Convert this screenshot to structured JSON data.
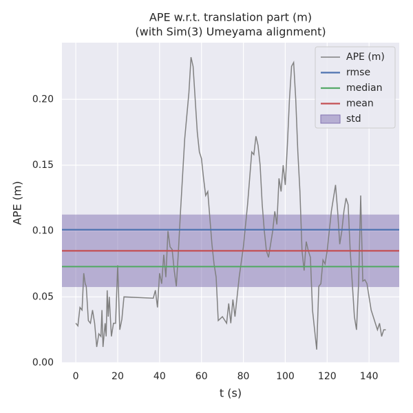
{
  "chart_data": {
    "type": "line",
    "title": [
      "APE w.r.t. translation part (m)",
      "(with Sim(3) Umeyama alignment)"
    ],
    "xlabel": "t (s)",
    "ylabel": "APE (m)",
    "xlim": [
      -6.6,
      154.4
    ],
    "ylim": [
      0,
      0.243
    ],
    "xticks": [
      0,
      20,
      40,
      60,
      80,
      100,
      120,
      140
    ],
    "yticks": [
      {
        "value": 0,
        "label": "0.00"
      },
      0.05,
      {
        "value": 0.1,
        "label": "0.10"
      },
      0.15,
      {
        "value": 0.2,
        "label": "0.20"
      }
    ],
    "grid": true,
    "legend": "upper right",
    "series": [
      {
        "name": "APE (m)",
        "color": "#808080",
        "x": [
          0,
          1,
          1.5,
          2,
          3,
          3.8,
          4.5,
          5,
          6,
          7,
          8,
          9,
          10,
          11,
          12,
          12.5,
          13,
          14,
          14.5,
          15,
          15.5,
          16,
          17,
          18,
          19,
          20,
          21,
          22,
          23,
          37,
          38,
          39,
          40,
          41,
          42,
          43,
          44,
          45,
          46,
          47,
          48,
          49,
          50,
          52,
          54,
          55,
          56,
          57,
          58,
          59,
          60,
          61,
          62,
          63,
          64,
          65,
          66,
          67,
          68,
          70,
          72,
          73,
          74,
          75,
          76,
          77,
          78,
          80,
          82,
          83,
          84,
          85,
          86,
          87,
          88,
          89,
          90,
          91,
          92,
          93,
          94,
          95,
          96,
          97,
          98,
          99,
          100,
          101,
          102,
          103,
          104,
          105,
          106,
          107,
          108,
          109,
          110,
          111,
          112,
          113,
          114,
          115,
          116,
          117,
          118,
          119,
          120,
          121,
          122,
          123,
          124,
          125,
          126,
          127,
          128,
          129,
          130,
          131,
          132,
          133,
          134,
          135,
          136,
          137,
          138,
          139,
          140,
          141,
          142,
          143,
          144,
          145,
          146,
          147,
          148
        ],
        "values": [
          0.03,
          0.028,
          0.035,
          0.042,
          0.04,
          0.068,
          0.06,
          0.058,
          0.032,
          0.03,
          0.04,
          0.03,
          0.012,
          0.022,
          0.02,
          0.04,
          0.012,
          0.03,
          0.02,
          0.055,
          0.035,
          0.05,
          0.02,
          0.03,
          0.03,
          0.074,
          0.025,
          0.033,
          0.05,
          0.049,
          0.055,
          0.042,
          0.068,
          0.06,
          0.082,
          0.065,
          0.1,
          0.088,
          0.086,
          0.07,
          0.058,
          0.085,
          0.115,
          0.17,
          0.205,
          0.232,
          0.225,
          0.2,
          0.175,
          0.16,
          0.155,
          0.14,
          0.127,
          0.13,
          0.11,
          0.09,
          0.075,
          0.065,
          0.032,
          0.035,
          0.03,
          0.045,
          0.03,
          0.048,
          0.035,
          0.05,
          0.065,
          0.088,
          0.12,
          0.14,
          0.16,
          0.158,
          0.172,
          0.165,
          0.15,
          0.12,
          0.1,
          0.085,
          0.08,
          0.09,
          0.1,
          0.115,
          0.105,
          0.14,
          0.13,
          0.15,
          0.135,
          0.165,
          0.2,
          0.225,
          0.228,
          0.2,
          0.16,
          0.13,
          0.085,
          0.07,
          0.092,
          0.085,
          0.08,
          0.04,
          0.025,
          0.01,
          0.058,
          0.06,
          0.078,
          0.075,
          0.085,
          0.1,
          0.115,
          0.125,
          0.135,
          0.115,
          0.09,
          0.1,
          0.115,
          0.125,
          0.12,
          0.085,
          0.06,
          0.035,
          0.025,
          0.06,
          0.127,
          0.062,
          0.063,
          0.06,
          0.05,
          0.04,
          0.035,
          0.03,
          0.025,
          0.03,
          0.02,
          0.025,
          0.025
        ]
      }
    ],
    "lines": [
      {
        "name": "rmse",
        "color": "#4c72b0",
        "value": 0.101
      },
      {
        "name": "median",
        "color": "#55a868",
        "value": 0.073
      },
      {
        "name": "mean",
        "color": "#c44e52",
        "value": 0.085
      }
    ],
    "std": {
      "name": "std",
      "color": "#8172b2",
      "value": 0.0275
    }
  }
}
